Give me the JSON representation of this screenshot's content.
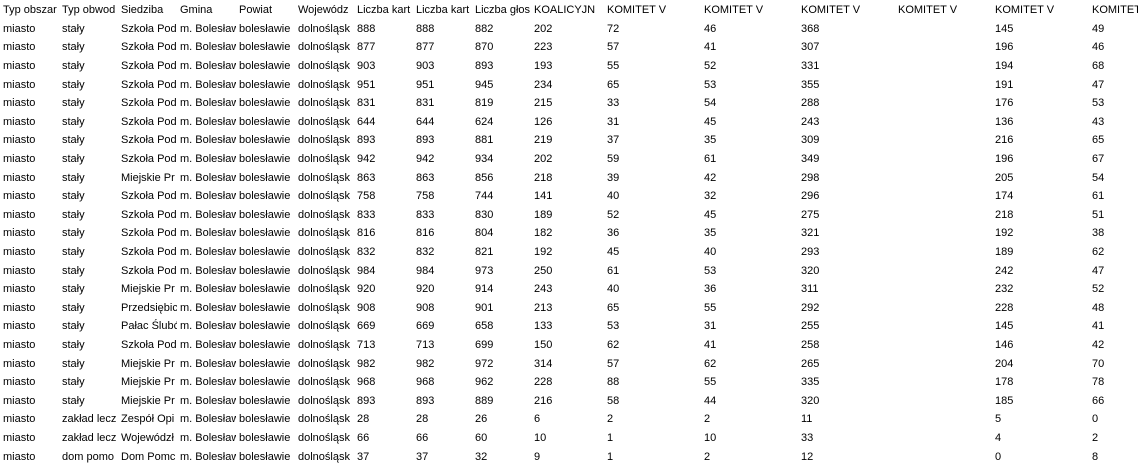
{
  "headers": [
    "Typ obszar",
    "Typ obwod",
    "Siedziba",
    "Gmina",
    "Powiat",
    "Wojewódz",
    "Liczba kart",
    "Liczba kart",
    "Liczba głos",
    "KOALICYJN",
    "KOMITET V",
    "KOMITET V",
    "KOMITET V",
    "KOMITET V",
    "KOMITET V",
    "KOMITET V"
  ],
  "rows": [
    [
      "miasto",
      "stały",
      "Szkoła Pod",
      "m. Bolesław",
      "bolesławie",
      "dolnośląsk",
      "888",
      "888",
      "882",
      "202",
      "72",
      "46",
      "368",
      "",
      "145",
      "49"
    ],
    [
      "miasto",
      "stały",
      "Szkoła Pod",
      "m. Bolesław",
      "bolesławie",
      "dolnośląsk",
      "877",
      "877",
      "870",
      "223",
      "57",
      "41",
      "307",
      "",
      "196",
      "46"
    ],
    [
      "miasto",
      "stały",
      "Szkoła Pod",
      "m. Bolesław",
      "bolesławie",
      "dolnośląsk",
      "903",
      "903",
      "893",
      "193",
      "55",
      "52",
      "331",
      "",
      "194",
      "68"
    ],
    [
      "miasto",
      "stały",
      "Szkoła Pod",
      "m. Bolesław",
      "bolesławie",
      "dolnośląsk",
      "951",
      "951",
      "945",
      "234",
      "65",
      "53",
      "355",
      "",
      "191",
      "47"
    ],
    [
      "miasto",
      "stały",
      "Szkoła Pod",
      "m. Bolesław",
      "bolesławie",
      "dolnośląsk",
      "831",
      "831",
      "819",
      "215",
      "33",
      "54",
      "288",
      "",
      "176",
      "53"
    ],
    [
      "miasto",
      "stały",
      "Szkoła Pod",
      "m. Bolesław",
      "bolesławie",
      "dolnośląsk",
      "644",
      "644",
      "624",
      "126",
      "31",
      "45",
      "243",
      "",
      "136",
      "43"
    ],
    [
      "miasto",
      "stały",
      "Szkoła Pod",
      "m. Bolesław",
      "bolesławie",
      "dolnośląsk",
      "893",
      "893",
      "881",
      "219",
      "37",
      "35",
      "309",
      "",
      "216",
      "65"
    ],
    [
      "miasto",
      "stały",
      "Szkoła Pod",
      "m. Bolesław",
      "bolesławie",
      "dolnośląsk",
      "942",
      "942",
      "934",
      "202",
      "59",
      "61",
      "349",
      "",
      "196",
      "67"
    ],
    [
      "miasto",
      "stały",
      "Miejskie Pr",
      "m. Bolesław",
      "bolesławie",
      "dolnośląsk",
      "863",
      "863",
      "856",
      "218",
      "39",
      "42",
      "298",
      "",
      "205",
      "54"
    ],
    [
      "miasto",
      "stały",
      "Szkoła Pod",
      "m. Bolesław",
      "bolesławie",
      "dolnośląsk",
      "758",
      "758",
      "744",
      "141",
      "40",
      "32",
      "296",
      "",
      "174",
      "61"
    ],
    [
      "miasto",
      "stały",
      "Szkoła Pod",
      "m. Bolesław",
      "bolesławie",
      "dolnośląsk",
      "833",
      "833",
      "830",
      "189",
      "52",
      "45",
      "275",
      "",
      "218",
      "51"
    ],
    [
      "miasto",
      "stały",
      "Szkoła Pod",
      "m. Bolesław",
      "bolesławie",
      "dolnośląsk",
      "816",
      "816",
      "804",
      "182",
      "36",
      "35",
      "321",
      "",
      "192",
      "38"
    ],
    [
      "miasto",
      "stały",
      "Szkoła Pod",
      "m. Bolesław",
      "bolesławie",
      "dolnośląsk",
      "832",
      "832",
      "821",
      "192",
      "45",
      "40",
      "293",
      "",
      "189",
      "62"
    ],
    [
      "miasto",
      "stały",
      "Szkoła Pod",
      "m. Bolesław",
      "bolesławie",
      "dolnośląsk",
      "984",
      "984",
      "973",
      "250",
      "61",
      "53",
      "320",
      "",
      "242",
      "47"
    ],
    [
      "miasto",
      "stały",
      "Miejskie Pr",
      "m. Bolesław",
      "bolesławie",
      "dolnośląsk",
      "920",
      "920",
      "914",
      "243",
      "40",
      "36",
      "311",
      "",
      "232",
      "52"
    ],
    [
      "miasto",
      "stały",
      "Przedsiębic",
      "m. Bolesław",
      "bolesławie",
      "dolnośląsk",
      "908",
      "908",
      "901",
      "213",
      "65",
      "55",
      "292",
      "",
      "228",
      "48"
    ],
    [
      "miasto",
      "stały",
      "Pałac Ślubć",
      "m. Bolesław",
      "bolesławie",
      "dolnośląsk",
      "669",
      "669",
      "658",
      "133",
      "53",
      "31",
      "255",
      "",
      "145",
      "41"
    ],
    [
      "miasto",
      "stały",
      "Szkoła Pod",
      "m. Bolesław",
      "bolesławie",
      "dolnośląsk",
      "713",
      "713",
      "699",
      "150",
      "62",
      "41",
      "258",
      "",
      "146",
      "42"
    ],
    [
      "miasto",
      "stały",
      "Miejskie Pr",
      "m. Bolesław",
      "bolesławie",
      "dolnośląsk",
      "982",
      "982",
      "972",
      "314",
      "57",
      "62",
      "265",
      "",
      "204",
      "70"
    ],
    [
      "miasto",
      "stały",
      "Miejskie Pr",
      "m. Bolesław",
      "bolesławie",
      "dolnośląsk",
      "968",
      "968",
      "962",
      "228",
      "88",
      "55",
      "335",
      "",
      "178",
      "78"
    ],
    [
      "miasto",
      "stały",
      "Miejskie Pr",
      "m. Bolesław",
      "bolesławie",
      "dolnośląsk",
      "893",
      "893",
      "889",
      "216",
      "58",
      "44",
      "320",
      "",
      "185",
      "66"
    ],
    [
      "miasto",
      "zakład lecz",
      "Zespół Opi",
      "m. Bolesław",
      "bolesławie",
      "dolnośląsk",
      "28",
      "28",
      "26",
      "6",
      "2",
      "2",
      "11",
      "",
      "5",
      "0"
    ],
    [
      "miasto",
      "zakład lecz",
      "Wojewódzł",
      "m. Bolesław",
      "bolesławie",
      "dolnośląsk",
      "66",
      "66",
      "60",
      "10",
      "1",
      "10",
      "33",
      "",
      "4",
      "2"
    ],
    [
      "miasto",
      "dom pomo",
      "Dom Pomc",
      "m. Bolesław",
      "bolesławie",
      "dolnośląsk",
      "37",
      "37",
      "32",
      "9",
      "1",
      "2",
      "12",
      "",
      "0",
      "8"
    ]
  ]
}
